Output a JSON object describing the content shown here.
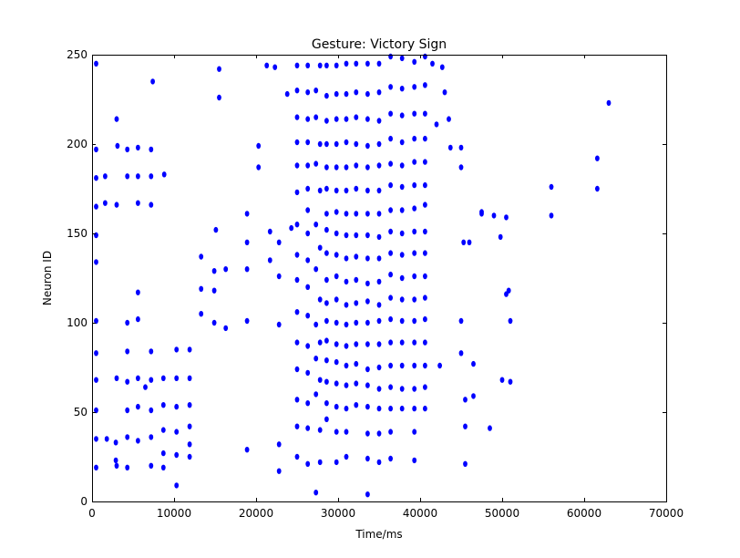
{
  "chart_data": {
    "type": "scatter",
    "title": "Gesture: Victory Sign",
    "xlabel": "Time/ms",
    "ylabel": "Neuron ID",
    "xlim": [
      0,
      70000
    ],
    "ylim": [
      0,
      250
    ],
    "xticks": [
      0,
      10000,
      20000,
      30000,
      40000,
      50000,
      60000,
      70000
    ],
    "yticks": [
      0,
      50,
      100,
      150,
      200,
      250
    ],
    "grid": false,
    "marker_color": "#0000ff",
    "points": [
      [
        500,
        245
      ],
      [
        500,
        197
      ],
      [
        500,
        181
      ],
      [
        500,
        165
      ],
      [
        500,
        149
      ],
      [
        500,
        134
      ],
      [
        500,
        101
      ],
      [
        500,
        83
      ],
      [
        500,
        68
      ],
      [
        500,
        51
      ],
      [
        500,
        35
      ],
      [
        500,
        19
      ],
      [
        1600,
        182
      ],
      [
        1600,
        167
      ],
      [
        1800,
        35
      ],
      [
        3000,
        214
      ],
      [
        3100,
        199
      ],
      [
        3000,
        166
      ],
      [
        3000,
        69
      ],
      [
        2900,
        33
      ],
      [
        2900,
        23
      ],
      [
        3000,
        20
      ],
      [
        4300,
        197
      ],
      [
        4300,
        182
      ],
      [
        4300,
        100
      ],
      [
        4300,
        84
      ],
      [
        4300,
        67
      ],
      [
        4300,
        51
      ],
      [
        4300,
        36
      ],
      [
        4300,
        19
      ],
      [
        5600,
        198
      ],
      [
        5600,
        182
      ],
      [
        5600,
        167
      ],
      [
        5600,
        117
      ],
      [
        5600,
        102
      ],
      [
        5600,
        69
      ],
      [
        5600,
        53
      ],
      [
        5600,
        34
      ],
      [
        6500,
        64
      ],
      [
        7200,
        197
      ],
      [
        7200,
        182
      ],
      [
        7200,
        166
      ],
      [
        7400,
        235
      ],
      [
        7200,
        84
      ],
      [
        7200,
        68
      ],
      [
        7200,
        51
      ],
      [
        7200,
        36
      ],
      [
        7200,
        20
      ],
      [
        8800,
        183
      ],
      [
        8700,
        69
      ],
      [
        8700,
        54
      ],
      [
        8700,
        40
      ],
      [
        8700,
        27
      ],
      [
        8700,
        19
      ],
      [
        10300,
        85
      ],
      [
        10300,
        69
      ],
      [
        10300,
        53
      ],
      [
        10300,
        39
      ],
      [
        10300,
        26
      ],
      [
        10300,
        9
      ],
      [
        11900,
        85
      ],
      [
        11900,
        69
      ],
      [
        11900,
        54
      ],
      [
        11900,
        42
      ],
      [
        11900,
        32
      ],
      [
        11900,
        25
      ],
      [
        13300,
        137
      ],
      [
        13300,
        119
      ],
      [
        13300,
        105
      ],
      [
        14900,
        129
      ],
      [
        14900,
        118
      ],
      [
        14900,
        100
      ],
      [
        15100,
        152
      ],
      [
        15500,
        242
      ],
      [
        15500,
        226
      ],
      [
        16300,
        97
      ],
      [
        16300,
        130
      ],
      [
        18900,
        161
      ],
      [
        18900,
        145
      ],
      [
        18900,
        130
      ],
      [
        18900,
        101
      ],
      [
        18900,
        29
      ],
      [
        20300,
        199
      ],
      [
        20300,
        187
      ],
      [
        21300,
        244
      ],
      [
        21700,
        151
      ],
      [
        21700,
        135
      ],
      [
        22300,
        243
      ],
      [
        22800,
        145
      ],
      [
        22800,
        126
      ],
      [
        22800,
        99
      ],
      [
        22800,
        32
      ],
      [
        22800,
        17
      ],
      [
        23800,
        228
      ],
      [
        24300,
        153
      ],
      [
        25000,
        244
      ],
      [
        25000,
        230
      ],
      [
        25000,
        215
      ],
      [
        25000,
        201
      ],
      [
        25000,
        188
      ],
      [
        25000,
        173
      ],
      [
        25000,
        155
      ],
      [
        25000,
        138
      ],
      [
        25000,
        124
      ],
      [
        25000,
        106
      ],
      [
        25000,
        89
      ],
      [
        25000,
        74
      ],
      [
        25000,
        57
      ],
      [
        25000,
        42
      ],
      [
        25000,
        25
      ],
      [
        26300,
        244
      ],
      [
        26300,
        229
      ],
      [
        26300,
        214
      ],
      [
        26300,
        201
      ],
      [
        26300,
        188
      ],
      [
        26300,
        175
      ],
      [
        26300,
        163
      ],
      [
        26300,
        150
      ],
      [
        26300,
        135
      ],
      [
        26300,
        120
      ],
      [
        26300,
        104
      ],
      [
        26300,
        87
      ],
      [
        26300,
        72
      ],
      [
        26300,
        55
      ],
      [
        26300,
        41
      ],
      [
        26300,
        21
      ],
      [
        27300,
        230
      ],
      [
        27300,
        215
      ],
      [
        27300,
        189
      ],
      [
        27300,
        155
      ],
      [
        27300,
        130
      ],
      [
        27300,
        99
      ],
      [
        27300,
        80
      ],
      [
        27300,
        60
      ],
      [
        27300,
        5
      ],
      [
        27800,
        244
      ],
      [
        27800,
        200
      ],
      [
        27800,
        174
      ],
      [
        27800,
        142
      ],
      [
        27800,
        113
      ],
      [
        27800,
        89
      ],
      [
        27800,
        68
      ],
      [
        27800,
        40
      ],
      [
        27800,
        22
      ],
      [
        28600,
        244
      ],
      [
        28600,
        227
      ],
      [
        28600,
        213
      ],
      [
        28600,
        200
      ],
      [
        28600,
        187
      ],
      [
        28600,
        175
      ],
      [
        28600,
        161
      ],
      [
        28600,
        152
      ],
      [
        28600,
        139
      ],
      [
        28600,
        124
      ],
      [
        28600,
        111
      ],
      [
        28600,
        101
      ],
      [
        28600,
        90
      ],
      [
        28600,
        79
      ],
      [
        28600,
        67
      ],
      [
        28600,
        55
      ],
      [
        28600,
        46
      ],
      [
        29800,
        244
      ],
      [
        29800,
        228
      ],
      [
        29800,
        214
      ],
      [
        29800,
        200
      ],
      [
        29800,
        187
      ],
      [
        29800,
        174
      ],
      [
        29800,
        162
      ],
      [
        29800,
        150
      ],
      [
        29800,
        138
      ],
      [
        29800,
        126
      ],
      [
        29800,
        113
      ],
      [
        29800,
        100
      ],
      [
        29800,
        88
      ],
      [
        29800,
        78
      ],
      [
        29800,
        66
      ],
      [
        29800,
        53
      ],
      [
        29800,
        39
      ],
      [
        29800,
        22
      ],
      [
        31000,
        245
      ],
      [
        31000,
        228
      ],
      [
        31000,
        214
      ],
      [
        31000,
        201
      ],
      [
        31000,
        187
      ],
      [
        31000,
        174
      ],
      [
        31000,
        161
      ],
      [
        31000,
        149
      ],
      [
        31000,
        136
      ],
      [
        31000,
        123
      ],
      [
        31000,
        110
      ],
      [
        31000,
        99
      ],
      [
        31000,
        87
      ],
      [
        31000,
        76
      ],
      [
        31000,
        65
      ],
      [
        31000,
        52
      ],
      [
        31000,
        39
      ],
      [
        31000,
        25
      ],
      [
        32200,
        245
      ],
      [
        32200,
        229
      ],
      [
        32200,
        215
      ],
      [
        32200,
        200
      ],
      [
        32200,
        188
      ],
      [
        32200,
        175
      ],
      [
        32200,
        161
      ],
      [
        32200,
        149
      ],
      [
        32200,
        137
      ],
      [
        32200,
        124
      ],
      [
        32200,
        111
      ],
      [
        32200,
        100
      ],
      [
        32200,
        88
      ],
      [
        32200,
        77
      ],
      [
        32200,
        66
      ],
      [
        32200,
        54
      ],
      [
        33600,
        245
      ],
      [
        33600,
        228
      ],
      [
        33600,
        214
      ],
      [
        33600,
        199
      ],
      [
        33600,
        187
      ],
      [
        33600,
        174
      ],
      [
        33600,
        161
      ],
      [
        33600,
        149
      ],
      [
        33600,
        136
      ],
      [
        33600,
        122
      ],
      [
        33600,
        112
      ],
      [
        33600,
        100
      ],
      [
        33600,
        88
      ],
      [
        33600,
        74
      ],
      [
        33600,
        65
      ],
      [
        33600,
        53
      ],
      [
        33600,
        38
      ],
      [
        33600,
        24
      ],
      [
        33600,
        4
      ],
      [
        35000,
        245
      ],
      [
        35000,
        229
      ],
      [
        35000,
        213
      ],
      [
        35000,
        200
      ],
      [
        35000,
        188
      ],
      [
        35000,
        174
      ],
      [
        35000,
        161
      ],
      [
        35000,
        148
      ],
      [
        35000,
        136
      ],
      [
        35000,
        123
      ],
      [
        35000,
        110
      ],
      [
        35000,
        101
      ],
      [
        35000,
        88
      ],
      [
        35000,
        75
      ],
      [
        35000,
        63
      ],
      [
        35000,
        52
      ],
      [
        35000,
        38
      ],
      [
        35000,
        22
      ],
      [
        36400,
        249
      ],
      [
        36400,
        232
      ],
      [
        36400,
        217
      ],
      [
        36400,
        203
      ],
      [
        36400,
        189
      ],
      [
        36400,
        177
      ],
      [
        36400,
        163
      ],
      [
        36400,
        151
      ],
      [
        36400,
        139
      ],
      [
        36400,
        127
      ],
      [
        36400,
        114
      ],
      [
        36400,
        102
      ],
      [
        36400,
        89
      ],
      [
        36400,
        76
      ],
      [
        36400,
        64
      ],
      [
        36400,
        52
      ],
      [
        36400,
        39
      ],
      [
        36400,
        24
      ],
      [
        37800,
        248
      ],
      [
        37800,
        231
      ],
      [
        37800,
        216
      ],
      [
        37800,
        201
      ],
      [
        37800,
        188
      ],
      [
        37800,
        176
      ],
      [
        37800,
        163
      ],
      [
        37800,
        150
      ],
      [
        37800,
        138
      ],
      [
        37800,
        125
      ],
      [
        37800,
        113
      ],
      [
        37800,
        101
      ],
      [
        37800,
        89
      ],
      [
        37800,
        76
      ],
      [
        37800,
        63
      ],
      [
        37800,
        52
      ],
      [
        39300,
        246
      ],
      [
        39300,
        232
      ],
      [
        39300,
        217
      ],
      [
        39300,
        203
      ],
      [
        39300,
        190
      ],
      [
        39300,
        177
      ],
      [
        39300,
        164
      ],
      [
        39300,
        151
      ],
      [
        39300,
        139
      ],
      [
        39300,
        126
      ],
      [
        39300,
        113
      ],
      [
        39300,
        101
      ],
      [
        39300,
        89
      ],
      [
        39300,
        76
      ],
      [
        39300,
        63
      ],
      [
        39300,
        52
      ],
      [
        39300,
        39
      ],
      [
        39300,
        23
      ],
      [
        40600,
        249
      ],
      [
        40600,
        233
      ],
      [
        40600,
        217
      ],
      [
        40600,
        203
      ],
      [
        40600,
        190
      ],
      [
        40600,
        177
      ],
      [
        40600,
        166
      ],
      [
        40600,
        151
      ],
      [
        40600,
        139
      ],
      [
        40600,
        126
      ],
      [
        40600,
        114
      ],
      [
        40600,
        102
      ],
      [
        40600,
        89
      ],
      [
        40600,
        76
      ],
      [
        40600,
        64
      ],
      [
        40600,
        52
      ],
      [
        41500,
        245
      ],
      [
        42000,
        211
      ],
      [
        42400,
        76
      ],
      [
        42700,
        243
      ],
      [
        43000,
        229
      ],
      [
        43500,
        214
      ],
      [
        43700,
        198
      ],
      [
        45000,
        198
      ],
      [
        45000,
        187
      ],
      [
        45000,
        101
      ],
      [
        45000,
        83
      ],
      [
        45300,
        145
      ],
      [
        45500,
        57
      ],
      [
        45500,
        42
      ],
      [
        45500,
        21
      ],
      [
        46000,
        145
      ],
      [
        46500,
        77
      ],
      [
        46500,
        59
      ],
      [
        47500,
        161
      ],
      [
        47500,
        162
      ],
      [
        48500,
        41
      ],
      [
        49000,
        160
      ],
      [
        49800,
        148
      ],
      [
        50000,
        68
      ],
      [
        50500,
        159
      ],
      [
        50500,
        116
      ],
      [
        50800,
        118
      ],
      [
        51000,
        101
      ],
      [
        51000,
        67
      ],
      [
        56000,
        176
      ],
      [
        56000,
        160
      ],
      [
        61600,
        192
      ],
      [
        61600,
        175
      ],
      [
        63000,
        223
      ]
    ]
  }
}
